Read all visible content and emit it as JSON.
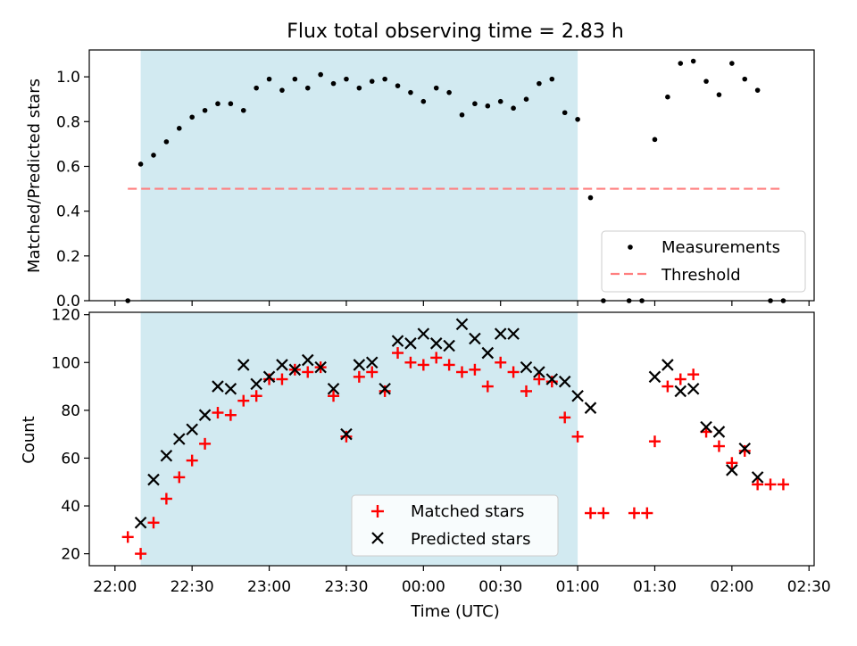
{
  "chart_data": [
    {
      "type": "scatter",
      "title": "Flux total observing time = 2.83 h",
      "ylabel": "Matched/Predicted stars",
      "ylim": [
        0,
        1.12
      ],
      "yticks": [
        "0.0",
        "0.2",
        "0.4",
        "0.6",
        "0.8",
        "1.0"
      ],
      "observing_window": [
        "22:10",
        "01:00"
      ],
      "shade_color": "#add8e6",
      "threshold": {
        "name": "Threshold",
        "value": 0.5,
        "x_range": [
          "22:05",
          "02:20"
        ],
        "color": "#ff7f7f"
      },
      "series": [
        {
          "name": "Measurements",
          "color": "#000000",
          "points": [
            [
              "22:05",
              0.0
            ],
            [
              "22:10",
              0.61
            ],
            [
              "22:15",
              0.65
            ],
            [
              "22:20",
              0.71
            ],
            [
              "22:25",
              0.77
            ],
            [
              "22:30",
              0.82
            ],
            [
              "22:35",
              0.85
            ],
            [
              "22:40",
              0.88
            ],
            [
              "22:45",
              0.88
            ],
            [
              "22:50",
              0.85
            ],
            [
              "22:55",
              0.95
            ],
            [
              "23:00",
              0.99
            ],
            [
              "23:05",
              0.94
            ],
            [
              "23:10",
              0.99
            ],
            [
              "23:15",
              0.95
            ],
            [
              "23:20",
              1.01
            ],
            [
              "23:25",
              0.97
            ],
            [
              "23:30",
              0.99
            ],
            [
              "23:35",
              0.95
            ],
            [
              "23:40",
              0.98
            ],
            [
              "23:45",
              0.99
            ],
            [
              "23:50",
              0.96
            ],
            [
              "23:55",
              0.93
            ],
            [
              "00:00",
              0.89
            ],
            [
              "00:05",
              0.95
            ],
            [
              "00:10",
              0.93
            ],
            [
              "00:15",
              0.83
            ],
            [
              "00:20",
              0.88
            ],
            [
              "00:25",
              0.87
            ],
            [
              "00:30",
              0.89
            ],
            [
              "00:35",
              0.86
            ],
            [
              "00:40",
              0.9
            ],
            [
              "00:45",
              0.97
            ],
            [
              "00:50",
              0.99
            ],
            [
              "00:55",
              0.84
            ],
            [
              "01:00",
              0.81
            ],
            [
              "01:05",
              0.46
            ],
            [
              "01:10",
              0.0
            ],
            [
              "01:20",
              0.0
            ],
            [
              "01:25",
              0.0
            ],
            [
              "01:30",
              0.72
            ],
            [
              "01:35",
              0.91
            ],
            [
              "01:40",
              1.06
            ],
            [
              "01:45",
              1.07
            ],
            [
              "01:50",
              0.98
            ],
            [
              "01:55",
              0.92
            ],
            [
              "02:00",
              1.06
            ],
            [
              "02:05",
              0.99
            ],
            [
              "02:10",
              0.94
            ],
            [
              "02:15",
              0.0
            ],
            [
              "02:20",
              0.0
            ]
          ]
        }
      ]
    },
    {
      "type": "scatter",
      "xlabel": "Time (UTC)",
      "ylabel": "Count",
      "ylim": [
        15,
        121
      ],
      "yticks": [
        "20",
        "40",
        "60",
        "80",
        "100",
        "120"
      ],
      "xticks": [
        "22:00",
        "22:30",
        "23:00",
        "23:30",
        "00:00",
        "00:30",
        "01:00",
        "01:30",
        "02:00",
        "02:30"
      ],
      "observing_window": [
        "22:10",
        "01:00"
      ],
      "shade_color": "#add8e6",
      "series": [
        {
          "name": "Matched stars",
          "marker": "+",
          "color": "#ff0000",
          "points": [
            [
              "22:05",
              27
            ],
            [
              "22:10",
              20
            ],
            [
              "22:15",
              33
            ],
            [
              "22:20",
              43
            ],
            [
              "22:25",
              52
            ],
            [
              "22:30",
              59
            ],
            [
              "22:35",
              66
            ],
            [
              "22:40",
              79
            ],
            [
              "22:45",
              78
            ],
            [
              "22:50",
              84
            ],
            [
              "22:55",
              86
            ],
            [
              "23:00",
              93
            ],
            [
              "23:05",
              93
            ],
            [
              "23:10",
              97
            ],
            [
              "23:15",
              96
            ],
            [
              "23:20",
              98
            ],
            [
              "23:25",
              86
            ],
            [
              "23:30",
              69
            ],
            [
              "23:35",
              94
            ],
            [
              "23:40",
              96
            ],
            [
              "23:45",
              88
            ],
            [
              "23:50",
              104
            ],
            [
              "23:55",
              100
            ],
            [
              "00:00",
              99
            ],
            [
              "00:05",
              102
            ],
            [
              "00:10",
              99
            ],
            [
              "00:15",
              96
            ],
            [
              "00:20",
              97
            ],
            [
              "00:25",
              90
            ],
            [
              "00:30",
              100
            ],
            [
              "00:35",
              96
            ],
            [
              "00:40",
              88
            ],
            [
              "00:45",
              93
            ],
            [
              "00:50",
              92
            ],
            [
              "00:55",
              77
            ],
            [
              "01:00",
              69
            ],
            [
              "01:05",
              37
            ],
            [
              "01:10",
              37
            ],
            [
              "01:22",
              37
            ],
            [
              "01:27",
              37
            ],
            [
              "01:30",
              67
            ],
            [
              "01:35",
              90
            ],
            [
              "01:40",
              93
            ],
            [
              "01:45",
              95
            ],
            [
              "01:50",
              71
            ],
            [
              "01:55",
              65
            ],
            [
              "02:00",
              58
            ],
            [
              "02:05",
              63
            ],
            [
              "02:10",
              49
            ],
            [
              "02:15",
              49
            ],
            [
              "02:20",
              49
            ]
          ]
        },
        {
          "name": "Predicted stars",
          "marker": "x",
          "color": "#000000",
          "points": [
            [
              "22:10",
              33
            ],
            [
              "22:15",
              51
            ],
            [
              "22:20",
              61
            ],
            [
              "22:25",
              68
            ],
            [
              "22:30",
              72
            ],
            [
              "22:35",
              78
            ],
            [
              "22:40",
              90
            ],
            [
              "22:45",
              89
            ],
            [
              "22:50",
              99
            ],
            [
              "22:55",
              91
            ],
            [
              "23:00",
              94
            ],
            [
              "23:05",
              99
            ],
            [
              "23:10",
              97
            ],
            [
              "23:15",
              101
            ],
            [
              "23:20",
              98
            ],
            [
              "23:25",
              89
            ],
            [
              "23:30",
              70
            ],
            [
              "23:35",
              99
            ],
            [
              "23:40",
              100
            ],
            [
              "23:45",
              89
            ],
            [
              "23:50",
              109
            ],
            [
              "23:55",
              108
            ],
            [
              "00:00",
              112
            ],
            [
              "00:05",
              108
            ],
            [
              "00:10",
              107
            ],
            [
              "00:15",
              116
            ],
            [
              "00:20",
              110
            ],
            [
              "00:25",
              104
            ],
            [
              "00:30",
              112
            ],
            [
              "00:35",
              112
            ],
            [
              "00:40",
              98
            ],
            [
              "00:45",
              96
            ],
            [
              "00:50",
              93
            ],
            [
              "00:55",
              92
            ],
            [
              "01:00",
              86
            ],
            [
              "01:05",
              81
            ],
            [
              "01:30",
              94
            ],
            [
              "01:35",
              99
            ],
            [
              "01:40",
              88
            ],
            [
              "01:45",
              89
            ],
            [
              "01:50",
              73
            ],
            [
              "01:55",
              71
            ],
            [
              "02:00",
              55
            ],
            [
              "02:05",
              64
            ],
            [
              "02:10",
              52
            ]
          ]
        }
      ]
    }
  ]
}
